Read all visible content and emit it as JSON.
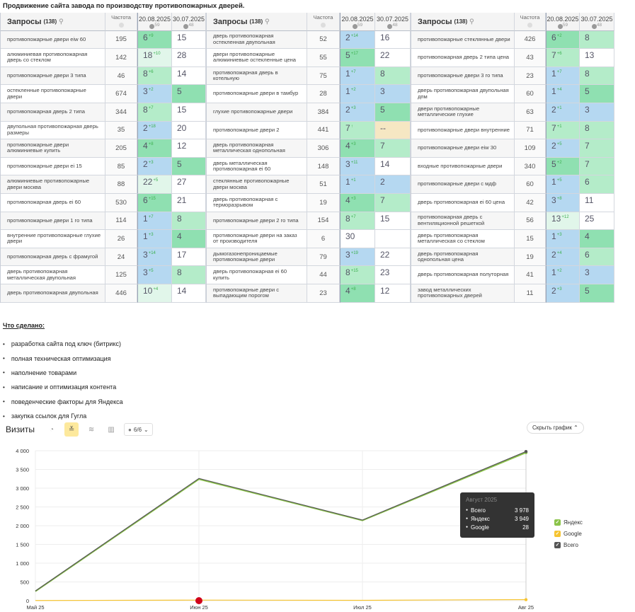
{
  "title": "Продвижение сайта завода по производству противопожарных дверей.",
  "table": {
    "header": {
      "queries": "Запросы",
      "count": "(138)",
      "freq": "Частота",
      "date1": "20.08.2025",
      "date1_n": "59",
      "date2": "30.07.2025",
      "date2_n": "48"
    },
    "groups": [
      [
        [
          "противопожарные двери eiw 60",
          "195",
          "6",
          "+9",
          "g",
          "15",
          "w"
        ],
        [
          "алюминиевая противопожарная дверь со стеклом",
          "142",
          "18",
          "+10",
          "xg",
          "28",
          "w"
        ],
        [
          "противопожарные двери 3 типа",
          "46",
          "8",
          "+6",
          "lg",
          "14",
          "w"
        ],
        [
          "остекленные противопожарные двери",
          "674",
          "3",
          "+2",
          "b",
          "5",
          "g"
        ],
        [
          "противопожарная дверь 2 типа",
          "344",
          "8",
          "+7",
          "lg",
          "15",
          "w"
        ],
        [
          "двупольная противопожарная дверь размеры",
          "35",
          "2",
          "+18",
          "b",
          "20",
          "w"
        ],
        [
          "противопожарные двери алюминиевые купить",
          "205",
          "4",
          "+8",
          "g",
          "12",
          "w"
        ],
        [
          "противопожарные двери ei 15",
          "85",
          "2",
          "+3",
          "b",
          "5",
          "g"
        ],
        [
          "алюминиевые противопожарные двери москва",
          "88",
          "22",
          "+5",
          "xg",
          "27",
          "w"
        ],
        [
          "противопожарная дверь ei 60",
          "530",
          "6",
          "+15",
          "g",
          "21",
          "w"
        ],
        [
          "противопожарные двери 1 го типа",
          "114",
          "1",
          "+7",
          "b",
          "8",
          "lg"
        ],
        [
          "внутренние противопожарные глухие двери",
          "26",
          "1",
          "+3",
          "b",
          "4",
          "g"
        ],
        [
          "противопожарная дверь с фрамугой",
          "24",
          "3",
          "+14",
          "b",
          "17",
          "w"
        ],
        [
          "дверь противопожарная металлическая двупольная",
          "125",
          "3",
          "+5",
          "b",
          "8",
          "lg"
        ],
        [
          "дверь противопожарная двупольная",
          "446",
          "10",
          "+4",
          "xg",
          "14",
          "w"
        ]
      ],
      [
        [
          "дверь противопожарная остекленная двупольная",
          "52",
          "2",
          "+14",
          "b",
          "16",
          "w"
        ],
        [
          "двери противопожарные алюминиевые остекленные цена",
          "55",
          "5",
          "+17",
          "g",
          "22",
          "w"
        ],
        [
          "противопожарная дверь в котельную",
          "75",
          "1",
          "+7",
          "b",
          "8",
          "lg"
        ],
        [
          "противопожарные двери в тамбур",
          "28",
          "1",
          "+2",
          "b",
          "3",
          "b"
        ],
        [
          "глухие противопожарные двери",
          "384",
          "2",
          "+3",
          "b",
          "5",
          "g"
        ],
        [
          "противопожарные двери 2",
          "441",
          "7",
          "↑",
          "lg",
          "--",
          "y"
        ],
        [
          "дверь противопожарная металлическая однопольная",
          "306",
          "4",
          "+3",
          "g",
          "7",
          "lg"
        ],
        [
          "дверь металлическая противопожарная ei 60",
          "148",
          "3",
          "+11",
          "b",
          "14",
          "w"
        ],
        [
          "стеклянные противопожарные двери москва",
          "51",
          "1",
          "+1",
          "b",
          "2",
          "b"
        ],
        [
          "дверь противопожарная с терморазрывом",
          "19",
          "4",
          "+3",
          "g",
          "7",
          "lg"
        ],
        [
          "противопожарные двери 2 го типа",
          "154",
          "8",
          "+7",
          "lg",
          "15",
          "w"
        ],
        [
          "противопожарные двери на заказ от производителя",
          "6",
          "30",
          "",
          "w",
          "",
          "w"
        ],
        [
          "дымогазонепроницаемые противопожарные двери",
          "79",
          "3",
          "+19",
          "b",
          "22",
          "w"
        ],
        [
          "дверь противопожарная ei 60 купить",
          "44",
          "8",
          "+15",
          "lg",
          "23",
          "w"
        ],
        [
          "противопожарные двери с выпадающим порогом",
          "23",
          "4",
          "+8",
          "g",
          "12",
          "w"
        ]
      ],
      [
        [
          "противопожарные стеклянные двери",
          "426",
          "6",
          "+2",
          "g",
          "8",
          "lg"
        ],
        [
          "противопожарная дверь 2 типа цена",
          "43",
          "7",
          "+6",
          "lg",
          "13",
          "w"
        ],
        [
          "противопожарные двери 3 го типа",
          "23",
          "1",
          "+7",
          "b",
          "8",
          "lg"
        ],
        [
          "дверь противопожарная двупольная дпм",
          "60",
          "1",
          "+4",
          "b",
          "5",
          "g"
        ],
        [
          "двери противопожарные металлические глухие",
          "63",
          "2",
          "+1",
          "b",
          "3",
          "b"
        ],
        [
          "противопожарные двери внутренние",
          "71",
          "7",
          "+1",
          "lg",
          "8",
          "lg"
        ],
        [
          "противопожарные двери eiw 30",
          "109",
          "2",
          "+5",
          "b",
          "7",
          "lg"
        ],
        [
          "входные противопожарные двери",
          "340",
          "5",
          "+2",
          "g",
          "7",
          "lg"
        ],
        [
          "противопожарные двери с мдф",
          "60",
          "1",
          "+5",
          "b",
          "6",
          "lg"
        ],
        [
          "дверь противопожарная ei 60 цена",
          "42",
          "3",
          "+8",
          "b",
          "11",
          "w"
        ],
        [
          "противопожарная дверь с вентиляционной решеткой",
          "56",
          "13",
          "+12",
          "xg",
          "25",
          "w"
        ],
        [
          "дверь противопожарная металлическая со стеклом",
          "15",
          "1",
          "+3",
          "b",
          "4",
          "g"
        ],
        [
          "дверь противопожарная однопольная цена",
          "19",
          "2",
          "+4",
          "b",
          "6",
          "lg"
        ],
        [
          "дверь противопожарная полуторная",
          "41",
          "1",
          "+2",
          "b",
          "3",
          "b"
        ],
        [
          "завод металлических противопожарных дверей",
          "11",
          "2",
          "+3",
          "b",
          "5",
          "g"
        ]
      ]
    ]
  },
  "done": {
    "heading": "Что сделано:",
    "items": [
      "разработка сайта под ключ (битрикс)",
      "полная техническая оптимизация",
      "наполнение товарами",
      "написание и оптимизация контента",
      "поведенческие факторы для Яндекса",
      "закупка ссылок для Гугла"
    ]
  },
  "toolbar": {
    "title": "Визиты",
    "selector": "6/6",
    "hide_chart": "Скрыть график"
  },
  "tooltip": {
    "month": "Август 2025",
    "rows": [
      {
        "name": "Всего",
        "value": "3 978"
      },
      {
        "name": "Яндекс",
        "value": "3 949"
      },
      {
        "name": "Google",
        "value": "28"
      }
    ]
  },
  "chart_data": {
    "type": "line",
    "categories": [
      "Май 25",
      "Июн 25",
      "Июл 25",
      "Авг 25"
    ],
    "yticks": [
      "0",
      "500",
      "1 000",
      "1 500",
      "2 000",
      "2 500",
      "3 000",
      "3 500",
      "4 000"
    ],
    "ylim": [
      0,
      4000
    ],
    "grid": true,
    "legend": "right",
    "series": [
      {
        "name": "Яндекс",
        "color": "#8bc34a",
        "values": [
          250,
          3240,
          2140,
          3949
        ]
      },
      {
        "name": "Google",
        "color": "#f6c431",
        "values": [
          5,
          15,
          10,
          28
        ]
      },
      {
        "name": "Всего",
        "color": "#555555",
        "values": [
          260,
          3260,
          2150,
          3978
        ]
      }
    ]
  }
}
